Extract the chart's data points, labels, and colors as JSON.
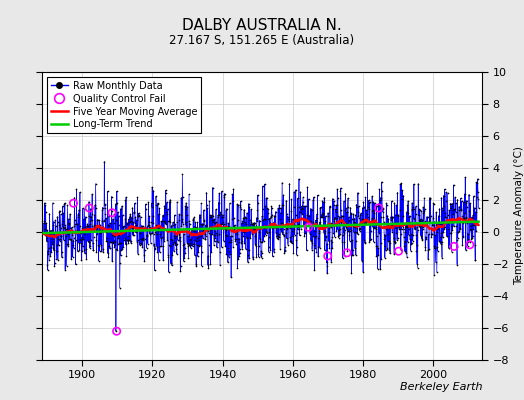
{
  "title": "DALBY AUSTRALIA N.",
  "subtitle": "27.167 S, 151.265 E (Australia)",
  "ylabel": "Temperature Anomaly (°C)",
  "credit": "Berkeley Earth",
  "year_start": 1889,
  "year_end": 2013,
  "ylim": [
    -8,
    10
  ],
  "yticks": [
    -8,
    -6,
    -4,
    -2,
    0,
    2,
    4,
    6,
    8,
    10
  ],
  "xticks": [
    1900,
    1920,
    1940,
    1960,
    1980,
    2000
  ],
  "background_color": "#e8e8e8",
  "plot_bg_color": "#ffffff",
  "raw_line_color": "#0000ff",
  "raw_dot_color": "#000000",
  "qc_fail_color": "#ff00ff",
  "moving_avg_color": "#ff0000",
  "trend_color": "#00cc00",
  "grid_color": "#cccccc",
  "title_fontsize": 11,
  "subtitle_fontsize": 8.5,
  "seed": 42
}
